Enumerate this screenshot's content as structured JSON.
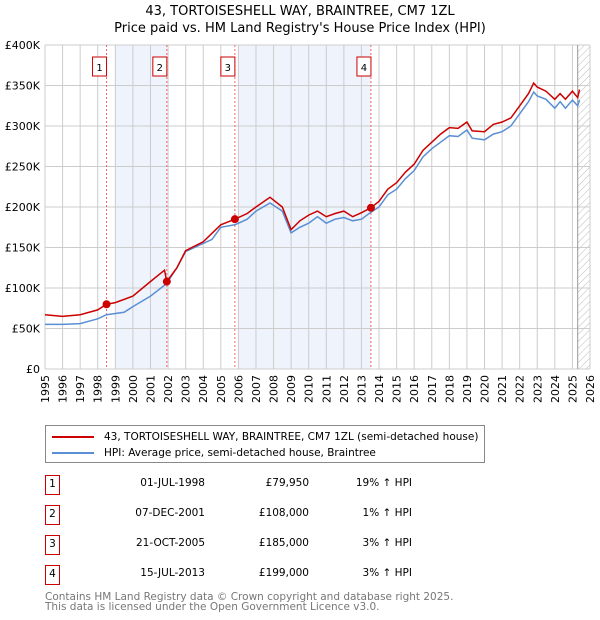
{
  "chart_data": {
    "type": "line",
    "title": "43, TORTOISESHELL WAY, BRAINTREE, CM7 1ZL",
    "subtitle": "Price paid vs. HM Land Registry's House Price Index (HPI)",
    "xlim": [
      1995,
      2026
    ],
    "ylim": [
      0,
      400000
    ],
    "y_ticks": [
      {
        "v": 0,
        "label": "£0"
      },
      {
        "v": 50000,
        "label": "£50K"
      },
      {
        "v": 100000,
        "label": "£100K"
      },
      {
        "v": 150000,
        "label": "£150K"
      },
      {
        "v": 200000,
        "label": "£200K"
      },
      {
        "v": 250000,
        "label": "£250K"
      },
      {
        "v": 300000,
        "label": "£300K"
      },
      {
        "v": 350000,
        "label": "£350K"
      },
      {
        "v": 400000,
        "label": "£400K"
      }
    ],
    "x_ticks": [
      "1995",
      "1996",
      "1997",
      "1998",
      "1999",
      "2000",
      "2001",
      "2002",
      "2003",
      "2004",
      "2005",
      "2006",
      "2007",
      "2008",
      "2009",
      "2010",
      "2011",
      "2012",
      "2013",
      "2014",
      "2015",
      "2016",
      "2017",
      "2018",
      "2019",
      "2020",
      "2021",
      "2022",
      "2023",
      "2024",
      "2025",
      "2026"
    ],
    "grid": true,
    "shaded_ranges": [
      [
        1999.0,
        2001.93
      ],
      [
        2006.0,
        2013.54
      ]
    ],
    "future_hatch_from": 2025.3,
    "series": [
      {
        "name": "43, TORTOISESHELL WAY, BRAINTREE, CM7 1ZL (semi-detached house)",
        "color": "#cc0000",
        "x": [
          1995,
          1996,
          1997,
          1998,
          1998.5,
          1999,
          2000,
          2001,
          2001.8,
          2001.93,
          2002.5,
          2003,
          2004,
          2005,
          2005.8,
          2006.5,
          2007,
          2007.8,
          2008.5,
          2009,
          2009.5,
          2010,
          2010.5,
          2011,
          2011.5,
          2012,
          2012.5,
          2013,
          2013.54,
          2014,
          2014.5,
          2015,
          2015.5,
          2016,
          2016.5,
          2017,
          2017.5,
          2018,
          2018.5,
          2019,
          2019.3,
          2020,
          2020.5,
          2021,
          2021.5,
          2022,
          2022.5,
          2022.8,
          2023,
          2023.5,
          2024,
          2024.3,
          2024.6,
          2025,
          2025.3,
          2025.4
        ],
        "y": [
          67000,
          65000,
          67000,
          73000,
          79950,
          82000,
          90000,
          108000,
          122000,
          108000,
          125000,
          146000,
          157000,
          178000,
          185000,
          192000,
          200000,
          212000,
          200000,
          172000,
          183000,
          190000,
          195000,
          188000,
          192000,
          195000,
          188000,
          193000,
          199000,
          207000,
          222000,
          230000,
          243000,
          253000,
          270000,
          280000,
          290000,
          298000,
          297000,
          305000,
          294000,
          293000,
          302000,
          305000,
          310000,
          325000,
          340000,
          353000,
          348000,
          343000,
          333000,
          340000,
          333000,
          343000,
          335000,
          345000
        ]
      },
      {
        "name": "HPI: Average price, semi-detached house, Braintree",
        "color": "#5b8fd4",
        "x": [
          1995,
          1996,
          1997,
          1998,
          1998.5,
          1999.5,
          2000,
          2001,
          2001.9,
          2002.5,
          2003,
          2004,
          2004.5,
          2005,
          2005.8,
          2006.5,
          2007,
          2007.8,
          2008.5,
          2009,
          2009.5,
          2010,
          2010.5,
          2011,
          2011.5,
          2012,
          2012.5,
          2013,
          2013.5,
          2014,
          2014.5,
          2015,
          2015.5,
          2016,
          2016.5,
          2017,
          2017.5,
          2018,
          2018.5,
          2019,
          2019.3,
          2020,
          2020.5,
          2021,
          2021.5,
          2022,
          2022.5,
          2022.8,
          2023,
          2023.5,
          2024,
          2024.3,
          2024.6,
          2025,
          2025.3,
          2025.4
        ],
        "y": [
          55000,
          55000,
          56000,
          62000,
          67000,
          70000,
          77000,
          90000,
          105000,
          125000,
          145000,
          155000,
          160000,
          175000,
          178000,
          185000,
          195000,
          205000,
          195000,
          168000,
          175000,
          180000,
          188000,
          180000,
          185000,
          187000,
          183000,
          185000,
          193000,
          200000,
          215000,
          222000,
          235000,
          245000,
          262000,
          272000,
          280000,
          288000,
          287000,
          295000,
          285000,
          283000,
          290000,
          293000,
          300000,
          315000,
          330000,
          342000,
          337000,
          333000,
          322000,
          330000,
          322000,
          332000,
          325000,
          332000
        ]
      }
    ],
    "markers": [
      {
        "n": "1",
        "x": 1998.5,
        "y": 79950
      },
      {
        "n": "2",
        "x": 2001.93,
        "y": 108000
      },
      {
        "n": "3",
        "x": 2005.8,
        "y": 185000
      },
      {
        "n": "4",
        "x": 2013.54,
        "y": 199000
      }
    ]
  },
  "legend": {
    "items": [
      "43, TORTOISESHELL WAY, BRAINTREE, CM7 1ZL (semi-detached house)",
      "HPI: Average price, semi-detached house, Braintree"
    ]
  },
  "sales": [
    {
      "n": "1",
      "date": "01-JUL-1998",
      "price": "£79,950",
      "hpi": "19% ↑ HPI"
    },
    {
      "n": "2",
      "date": "07-DEC-2001",
      "price": "£108,000",
      "hpi": "1% ↑ HPI"
    },
    {
      "n": "3",
      "date": "21-OCT-2005",
      "price": "£185,000",
      "hpi": "3% ↑ HPI"
    },
    {
      "n": "4",
      "date": "15-JUL-2013",
      "price": "£199,000",
      "hpi": "3% ↑ HPI"
    }
  ],
  "footer": [
    "Contains HM Land Registry data © Crown copyright and database right 2025.",
    "This data is licensed under the Open Government Licence v3.0."
  ]
}
